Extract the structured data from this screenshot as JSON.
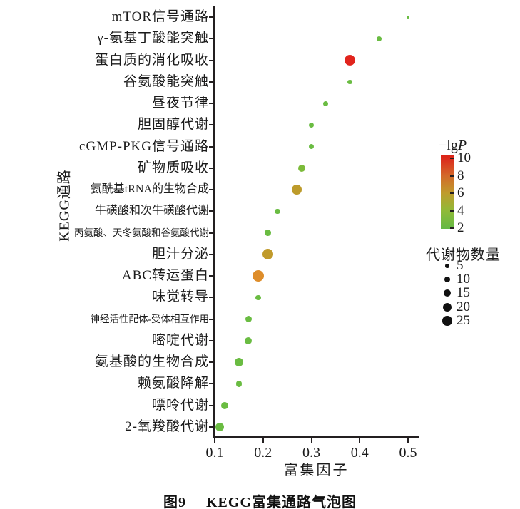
{
  "figure": {
    "caption_prefix": "图9",
    "caption_title": "KEGG富集通路气泡图"
  },
  "chart_data": {
    "type": "scatter",
    "title": "KEGG富集通路气泡图",
    "xlabel": "富集因子",
    "ylabel": "KEGG通路",
    "x_ticks": [
      0.1,
      0.2,
      0.3,
      0.4,
      0.5
    ],
    "x_range": [
      0.1,
      0.52
    ],
    "grid": false,
    "legend_position": "right",
    "points": [
      {
        "pathway": "mTOR信号通路",
        "enrichment_factor": 0.5,
        "metabolite_count": 3,
        "neg_lgP": 3,
        "color": "#6abc42",
        "diameter": 4.5
      },
      {
        "pathway": "γ-氨基丁酸能突触",
        "enrichment_factor": 0.44,
        "metabolite_count": 8,
        "neg_lgP": 3,
        "color": "#6abc42",
        "diameter": 7.5
      },
      {
        "pathway": "蛋白质的消化吸收",
        "enrichment_factor": 0.38,
        "metabolite_count": 28,
        "neg_lgP": 10,
        "color": "#e1241d",
        "diameter": 15.5
      },
      {
        "pathway": "谷氨酸能突触",
        "enrichment_factor": 0.38,
        "metabolite_count": 6,
        "neg_lgP": 3,
        "color": "#6abc42",
        "diameter": 6.5
      },
      {
        "pathway": "昼夜节律",
        "enrichment_factor": 0.33,
        "metabolite_count": 7,
        "neg_lgP": 3,
        "color": "#6abc42",
        "diameter": 7
      },
      {
        "pathway": "胆固醇代谢",
        "enrichment_factor": 0.3,
        "metabolite_count": 8,
        "neg_lgP": 3,
        "color": "#6abc42",
        "diameter": 7.5
      },
      {
        "pathway": "cGMP-PKG信号通路",
        "enrichment_factor": 0.3,
        "metabolite_count": 7,
        "neg_lgP": 3,
        "color": "#6abc42",
        "diameter": 7
      },
      {
        "pathway": "矿物质吸收",
        "enrichment_factor": 0.28,
        "metabolite_count": 15,
        "neg_lgP": 4,
        "color": "#7cbb3a",
        "diameter": 10.5
      },
      {
        "pathway": "氨酰基tRNA的生物合成",
        "enrichment_factor": 0.27,
        "metabolite_count": 25,
        "neg_lgP": 6,
        "color": "#bd9b2b",
        "diameter": 13.5
      },
      {
        "pathway": "牛磺酸和次牛磺酸代谢",
        "enrichment_factor": 0.23,
        "metabolite_count": 8,
        "neg_lgP": 3,
        "color": "#6abc42",
        "diameter": 7.5
      },
      {
        "pathway": "丙氨酸、天冬氨酸和谷氨酸代谢",
        "enrichment_factor": 0.21,
        "metabolite_count": 10,
        "neg_lgP": 3,
        "color": "#6abc42",
        "diameter": 8.5
      },
      {
        "pathway": "胆汁分泌",
        "enrichment_factor": 0.21,
        "metabolite_count": 30,
        "neg_lgP": 6,
        "color": "#c09a2b",
        "diameter": 15
      },
      {
        "pathway": "ABC转运蛋白",
        "enrichment_factor": 0.19,
        "metabolite_count": 35,
        "neg_lgP": 7,
        "color": "#de8d2a",
        "diameter": 16.5
      },
      {
        "pathway": "味觉转导",
        "enrichment_factor": 0.19,
        "metabolite_count": 8,
        "neg_lgP": 3,
        "color": "#6abc42",
        "diameter": 7.5
      },
      {
        "pathway": "神经活性配体-受体相互作用",
        "enrichment_factor": 0.17,
        "metabolite_count": 12,
        "neg_lgP": 3,
        "color": "#6abc42",
        "diameter": 9.5
      },
      {
        "pathway": "嘧啶代谢",
        "enrichment_factor": 0.17,
        "metabolite_count": 14,
        "neg_lgP": 3,
        "color": "#6abc42",
        "diameter": 10
      },
      {
        "pathway": "氨基酸的生物合成",
        "enrichment_factor": 0.15,
        "metabolite_count": 22,
        "neg_lgP": 3,
        "color": "#6abc42",
        "diameter": 12.5
      },
      {
        "pathway": "赖氨酸降解",
        "enrichment_factor": 0.15,
        "metabolite_count": 10,
        "neg_lgP": 3,
        "color": "#6abc42",
        "diameter": 8.5
      },
      {
        "pathway": "嘌呤代谢",
        "enrichment_factor": 0.12,
        "metabolite_count": 14,
        "neg_lgP": 3,
        "color": "#6abc42",
        "diameter": 10
      },
      {
        "pathway": "2-氧羧酸代谢",
        "enrichment_factor": 0.11,
        "metabolite_count": 20,
        "neg_lgP": 3,
        "color": "#6abc42",
        "diameter": 12
      }
    ],
    "color_legend": {
      "title_prefix": "−lg",
      "title_italic": "P",
      "ticks": [
        10,
        8,
        6,
        4,
        2
      ],
      "range": [
        2,
        10
      ],
      "gradient_stops": [
        {
          "color": "#dc2316",
          "pos": 0
        },
        {
          "color": "#dc2a1c",
          "pos": 5
        },
        {
          "color": "#d3682a",
          "pos": 28
        },
        {
          "color": "#bf9c2c",
          "pos": 52
        },
        {
          "color": "#8fba38",
          "pos": 76
        },
        {
          "color": "#63b944",
          "pos": 100
        }
      ]
    },
    "size_legend": {
      "title": "代谢物数量",
      "entries": [
        {
          "value": 5,
          "diameter": 5.5
        },
        {
          "value": 10,
          "diameter": 8
        },
        {
          "value": 15,
          "diameter": 10
        },
        {
          "value": 20,
          "diameter": 12
        },
        {
          "value": 25,
          "diameter": 13.5
        }
      ]
    }
  }
}
